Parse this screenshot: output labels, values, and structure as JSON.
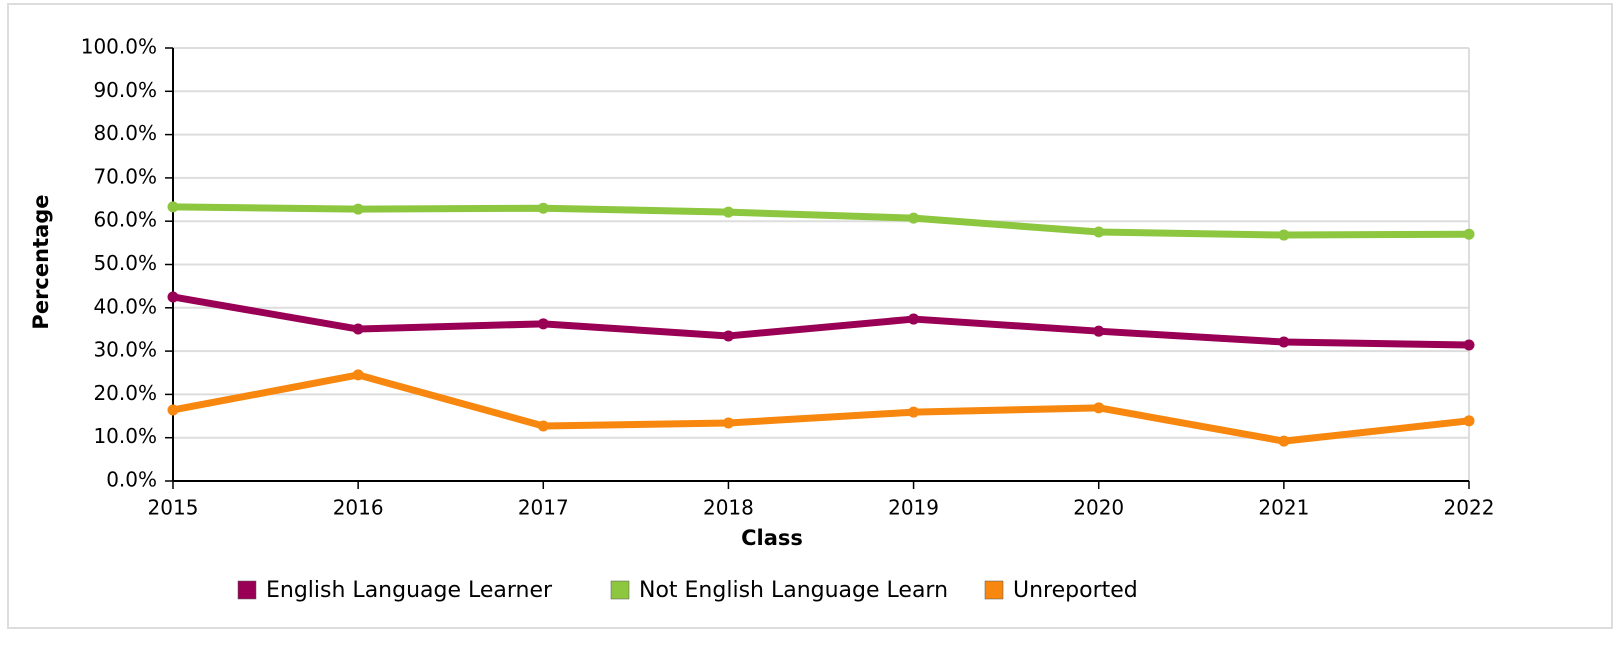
{
  "chart_data": {
    "type": "line",
    "x_label": "Class",
    "y_label": "Percentage",
    "categories": [
      "2015",
      "2016",
      "2017",
      "2018",
      "2019",
      "2020",
      "2021",
      "2022"
    ],
    "series": [
      {
        "name": "English Language Learner",
        "color": "#990055",
        "values": [
          42.5,
          35.1,
          36.3,
          33.5,
          37.4,
          34.6,
          32.1,
          31.4
        ]
      },
      {
        "name": "Not English Language Learn",
        "color": "#8dc63f",
        "values": [
          63.3,
          62.8,
          63.0,
          62.1,
          60.7,
          57.5,
          56.8,
          57.0
        ]
      },
      {
        "name": "Unreported",
        "color": "#f7870f",
        "values": [
          16.4,
          24.5,
          12.7,
          13.4,
          15.9,
          16.9,
          9.2,
          13.9
        ]
      }
    ],
    "ylim": [
      0,
      100
    ],
    "yticks": [
      {
        "value": 0,
        "label": "0.0%"
      },
      {
        "value": 10,
        "label": "10.0%"
      },
      {
        "value": 20,
        "label": "20.0%"
      },
      {
        "value": 30,
        "label": "30.0%"
      },
      {
        "value": 40,
        "label": "40.0%"
      },
      {
        "value": 50,
        "label": "50.0%"
      },
      {
        "value": 60,
        "label": "60.0%"
      },
      {
        "value": 70,
        "label": "70.0%"
      },
      {
        "value": 80,
        "label": "80.0%"
      },
      {
        "value": 90,
        "label": "90.0%"
      },
      {
        "value": 100,
        "label": "100.0%"
      }
    ],
    "grid": true
  }
}
